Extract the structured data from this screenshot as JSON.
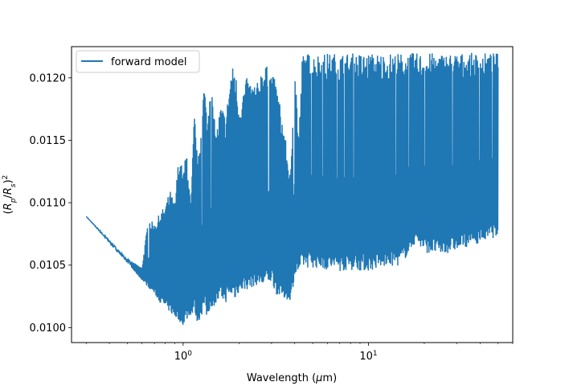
{
  "chart_data": {
    "type": "line",
    "title": "",
    "xlabel": "Wavelength (μm)",
    "ylabel": "(Rp/Rs)^2",
    "xscale": "log",
    "xlim": [
      0.25,
      60
    ],
    "ylim": [
      0.00988,
      0.01225
    ],
    "x_ticks": [
      {
        "value": 1,
        "base": "10",
        "exp": "0"
      },
      {
        "value": 10,
        "base": "10",
        "exp": "1"
      }
    ],
    "y_ticks": [
      0.01,
      0.0105,
      0.011,
      0.0115,
      0.012
    ],
    "y_tick_labels": [
      "0.0100",
      "0.0105",
      "0.0110",
      "0.0115",
      "0.0120"
    ],
    "grid": false,
    "legend_position": "top-left",
    "color": "#1f77b4",
    "series": [
      {
        "name": "forward model",
        "note_values": "approximate spectrum: baseline (lower edge) and peak (upper edge) of the dense absorption features",
        "x": [
          0.3,
          0.4,
          0.5,
          0.6,
          0.65,
          0.7,
          0.75,
          0.8,
          0.85,
          0.9,
          0.95,
          1.0,
          1.05,
          1.1,
          1.15,
          1.2,
          1.3,
          1.35,
          1.4,
          1.5,
          1.6,
          1.7,
          1.8,
          1.9,
          2.0,
          2.2,
          2.5,
          2.7,
          3.0,
          3.2,
          3.5,
          3.8,
          4.0,
          4.2,
          4.4,
          5.0,
          6.0,
          7.0,
          8.0,
          10.0,
          12.0,
          15.0,
          18.0,
          20.0,
          25.0,
          30.0,
          40.0,
          50.0
        ],
        "lower": [
          0.01089,
          0.01068,
          0.01052,
          0.01038,
          0.01032,
          0.01027,
          0.0102,
          0.01016,
          0.01012,
          0.01008,
          0.01005,
          0.01002,
          0.01006,
          0.0101,
          0.01012,
          0.01003,
          0.01014,
          0.01006,
          0.01016,
          0.01018,
          0.01022,
          0.0102,
          0.01025,
          0.01022,
          0.01028,
          0.0103,
          0.01034,
          0.01032,
          0.01036,
          0.01026,
          0.01023,
          0.01022,
          0.0104,
          0.01045,
          0.01048,
          0.01048,
          0.01046,
          0.01045,
          0.01046,
          0.01045,
          0.01048,
          0.0105,
          0.01068,
          0.0106,
          0.01058,
          0.01062,
          0.01068,
          0.01073
        ],
        "upper": [
          0.01089,
          0.0107,
          0.01055,
          0.01048,
          0.01088,
          0.01083,
          0.01092,
          0.01098,
          0.0111,
          0.011,
          0.0114,
          0.01125,
          0.01145,
          0.01095,
          0.01175,
          0.0113,
          0.012,
          0.01165,
          0.01205,
          0.01155,
          0.0118,
          0.0117,
          0.01205,
          0.01213,
          0.0118,
          0.012,
          0.01195,
          0.01213,
          0.01205,
          0.01195,
          0.0116,
          0.0112,
          0.0122,
          0.0115,
          0.0122,
          0.0122,
          0.0122,
          0.0122,
          0.0122,
          0.0122,
          0.0122,
          0.0122,
          0.0122,
          0.0122,
          0.0122,
          0.0122,
          0.0122,
          0.0122
        ]
      }
    ]
  }
}
